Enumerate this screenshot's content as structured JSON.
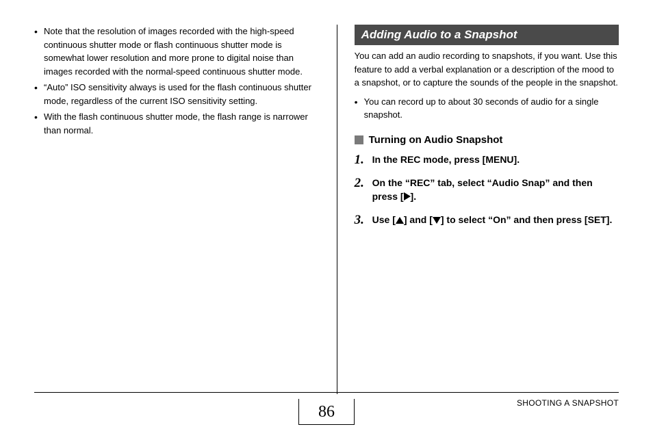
{
  "left": {
    "bullets": [
      "Note that the resolution of images recorded with the high-speed continuous shutter mode or flash continuous shutter mode is somewhat lower resolution and more prone to digital noise than images recorded with the normal-speed continuous shutter mode.",
      "“Auto” ISO sensitivity always is used for the flash continuous shutter mode, regardless of the current ISO sensitivity setting.",
      "With the flash continuous shutter mode, the flash range is narrower than normal."
    ]
  },
  "right": {
    "section_header": "Adding Audio to a Snapshot",
    "intro": "You can add an audio recording to snapshots, if you want. Use this feature to add a verbal explanation or a description of the mood to a snapshot, or to capture the sounds of the people in the snapshot.",
    "sub_bullets": [
      "You can record up to about 30 seconds of audio for a single snapshot."
    ],
    "subhead": "Turning on Audio Snapshot",
    "steps": [
      {
        "num": "1.",
        "pre": "In the REC mode, press [MENU]."
      },
      {
        "num": "2.",
        "pre": "On the “REC” tab, select “Audio Snap” and then press [",
        "icon": "right",
        "post": "]."
      },
      {
        "num": "3.",
        "pre": "Use [",
        "icon": "up",
        "mid": "] and [",
        "icon2": "down",
        "post": "] to select “On” and then press [SET]."
      }
    ]
  },
  "footer": {
    "page_number": "86",
    "section": "SHOOTING A SNAPSHOT"
  },
  "colors": {
    "header_bg": "#4a4a4a",
    "header_fg": "#ffffff",
    "subhead_marker": "#7a7a7a",
    "text": "#000000",
    "background": "#ffffff"
  }
}
